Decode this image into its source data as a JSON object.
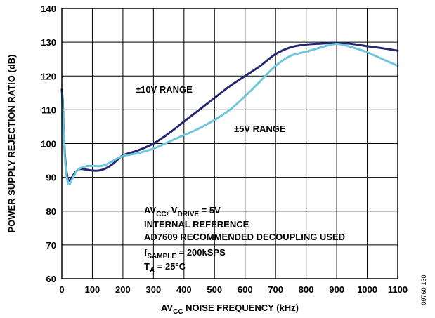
{
  "chart_data": {
    "type": "line",
    "xlabel": {
      "main": "AV",
      "sub": "CC",
      "rest": " NOISE FREQUENCY (kHz)"
    },
    "ylabel": "POWER SUPPLY REJECTION RATIO (dB)",
    "xlim": [
      0,
      1100
    ],
    "ylim": [
      60,
      140
    ],
    "xticks": [
      0,
      100,
      200,
      300,
      400,
      500,
      600,
      700,
      800,
      900,
      1000,
      1100
    ],
    "yticks": [
      60,
      70,
      80,
      90,
      100,
      110,
      120,
      130,
      140
    ],
    "grid": true,
    "series": [
      {
        "name": "±10V RANGE",
        "color": "#252870",
        "x": [
          0,
          3,
          6,
          10,
          15,
          20,
          25,
          30,
          40,
          50,
          60,
          80,
          100,
          120,
          140,
          160,
          180,
          200,
          250,
          300,
          350,
          400,
          450,
          500,
          550,
          600,
          650,
          700,
          750,
          800,
          850,
          900,
          950,
          1000,
          1050,
          1100
        ],
        "y": [
          116,
          112,
          104,
          97,
          92,
          89.5,
          89,
          89.5,
          91,
          92,
          92.5,
          92.3,
          92,
          92,
          92.5,
          93.5,
          95,
          96.5,
          98,
          100,
          103,
          106.5,
          110,
          113.5,
          117,
          120,
          123,
          126.5,
          128.5,
          129.3,
          129.6,
          129.8,
          129.5,
          128.8,
          128.2,
          127.5
        ]
      },
      {
        "name": "±5V RANGE",
        "color": "#6ec6dc",
        "x": [
          0,
          3,
          6,
          10,
          15,
          20,
          25,
          30,
          40,
          50,
          60,
          80,
          100,
          120,
          140,
          160,
          180,
          200,
          250,
          300,
          350,
          400,
          450,
          500,
          550,
          600,
          650,
          700,
          750,
          800,
          850,
          900,
          950,
          1000,
          1050,
          1100
        ],
        "y": [
          115,
          110,
          103,
          96,
          91,
          88.5,
          88,
          88.7,
          90.5,
          92,
          92.7,
          93.3,
          93.4,
          93.3,
          93.6,
          94.5,
          95.5,
          96.3,
          97.2,
          98.5,
          100.5,
          102.5,
          104.5,
          107,
          110,
          114,
          118.5,
          123,
          126,
          127.2,
          128.5,
          129.5,
          128.5,
          127,
          125,
          123
        ]
      }
    ],
    "annotations": {
      "range10": "±10V RANGE",
      "range5": "±5V RANGE",
      "cond_line1": {
        "a": "AV",
        "a_sub": "CC",
        "b": ", V",
        "b_sub": "DRIVE",
        "c": " = 5V"
      },
      "cond_line2": "INTERNAL REFERENCE",
      "cond_line3": "AD7609 RECOMMENDED DECOUPLING USED",
      "cond_line4": {
        "a": "f",
        "a_sub": "SAMPLE",
        "b": " = 200kSPS"
      },
      "cond_line5": {
        "a": "T",
        "a_sub": "A",
        "b": " = 25°C"
      }
    },
    "figure_id": "09760-130"
  }
}
